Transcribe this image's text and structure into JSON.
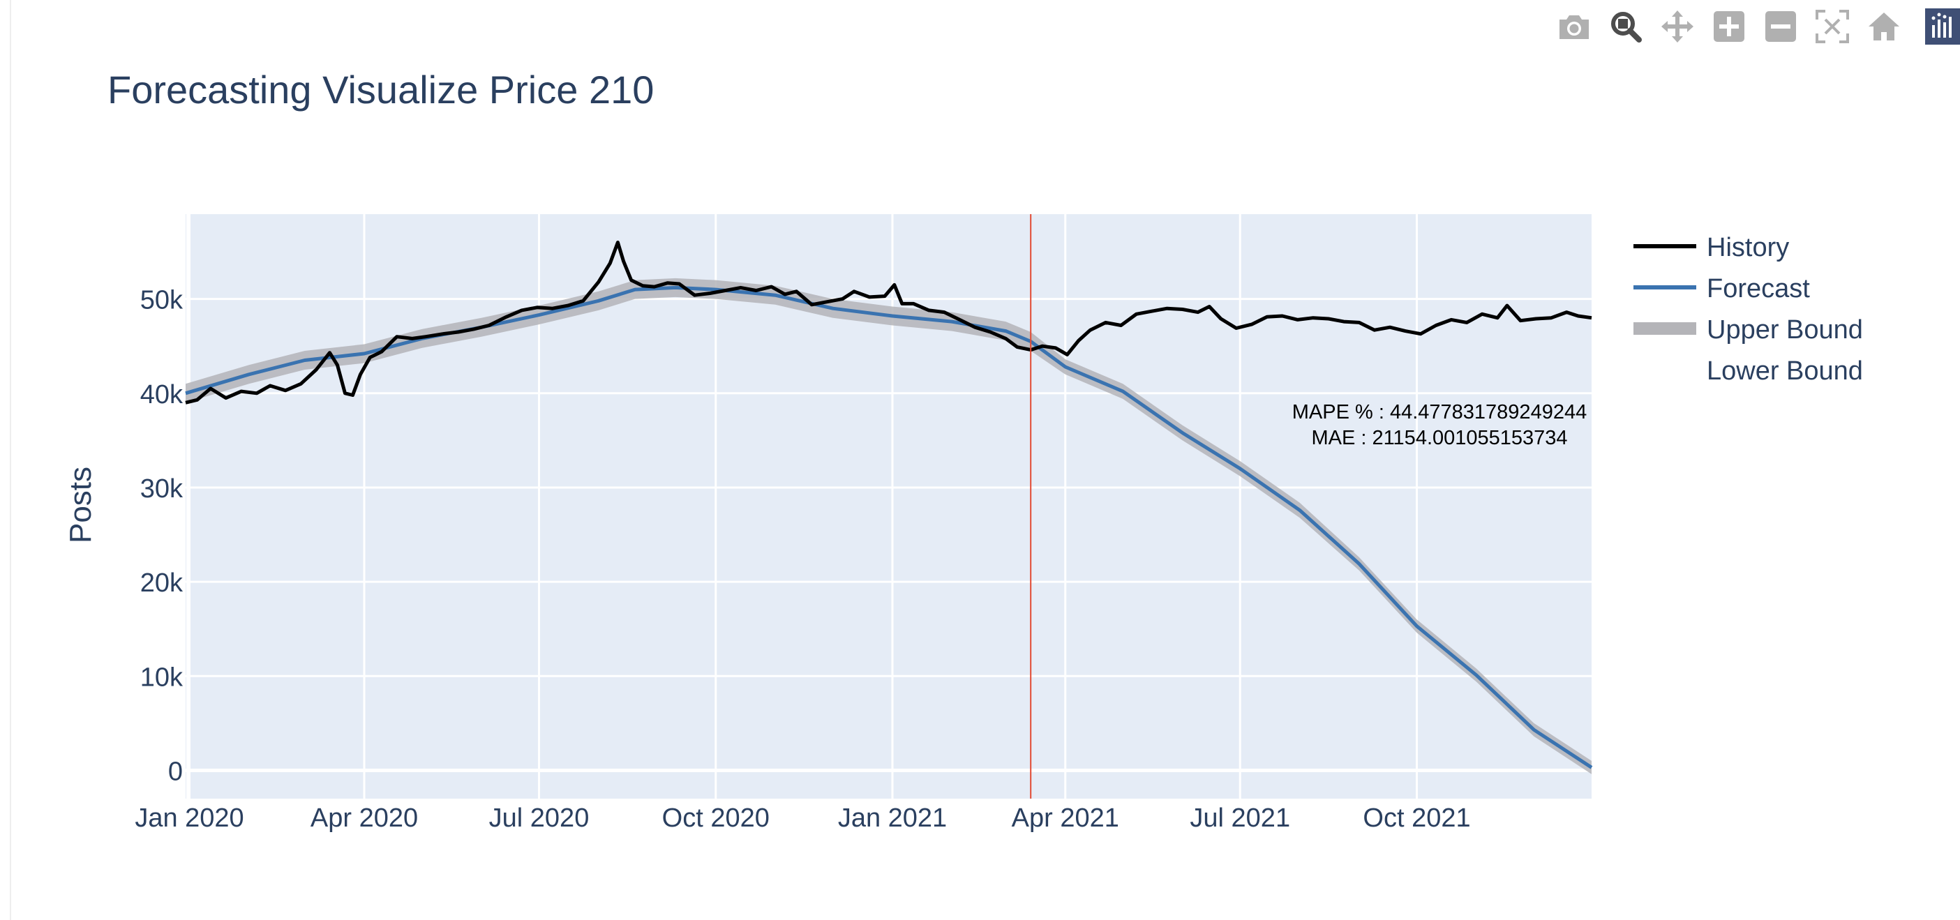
{
  "modebar": {
    "buttons": [
      {
        "name": "camera-icon",
        "active": false
      },
      {
        "name": "zoom-icon",
        "active": true
      },
      {
        "name": "pan-icon",
        "active": false
      },
      {
        "name": "zoom-in-icon",
        "active": false
      },
      {
        "name": "zoom-out-icon",
        "active": false
      },
      {
        "name": "autoscale-icon",
        "active": false
      },
      {
        "name": "home-icon",
        "active": false
      }
    ],
    "logo": "plotly-logo-icon"
  },
  "colors": {
    "plot_bg": "#e5ecf6",
    "grid": "#ffffff",
    "text": "#2a3f5f",
    "history": "#000000",
    "forecast": "#3a73b0",
    "band": "#b4b4b8",
    "divider": "#e24a33"
  },
  "chart_data": {
    "type": "line",
    "title": "Forecasting Visualize Price 210",
    "xlabel": "",
    "ylabel": "Posts",
    "x_range": [
      "2019-12-30",
      "2021-12-31"
    ],
    "ylim": [
      -3000,
      59000
    ],
    "x_tick_labels": [
      "Jan 2020",
      "Apr 2020",
      "Jul 2020",
      "Oct 2020",
      "Jan 2021",
      "Apr 2021",
      "Jul 2021",
      "Oct 2021"
    ],
    "x_tick_dates": [
      "2020-01-01",
      "2020-04-01",
      "2020-07-01",
      "2020-10-01",
      "2021-01-01",
      "2021-04-01",
      "2021-07-01",
      "2021-10-01"
    ],
    "y_tick_labels": [
      "0",
      "10k",
      "20k",
      "30k",
      "40k",
      "50k"
    ],
    "y_tick_values": [
      0,
      10000,
      20000,
      30000,
      40000,
      50000
    ],
    "grid": true,
    "legend_position": "right",
    "legend": [
      "History",
      "Forecast",
      "Upper Bound",
      "Lower Bound"
    ],
    "split_date": "2021-03-14",
    "annotation": {
      "mape_label": "MAPE % :  44.477831789249244",
      "mae_label": "MAE :  21154.001055153734"
    },
    "series": [
      {
        "name": "History",
        "x": [
          "2019-12-30",
          "2020-01-05",
          "2020-01-12",
          "2020-01-20",
          "2020-01-28",
          "2020-02-05",
          "2020-02-12",
          "2020-02-20",
          "2020-02-28",
          "2020-03-07",
          "2020-03-14",
          "2020-03-18",
          "2020-03-22",
          "2020-03-26",
          "2020-03-30",
          "2020-04-04",
          "2020-04-10",
          "2020-04-18",
          "2020-04-26",
          "2020-05-03",
          "2020-05-12",
          "2020-05-20",
          "2020-05-28",
          "2020-06-05",
          "2020-06-14",
          "2020-06-22",
          "2020-06-30",
          "2020-07-08",
          "2020-07-16",
          "2020-07-24",
          "2020-08-01",
          "2020-08-07",
          "2020-08-11",
          "2020-08-14",
          "2020-08-18",
          "2020-08-24",
          "2020-08-30",
          "2020-09-06",
          "2020-09-12",
          "2020-09-20",
          "2020-09-28",
          "2020-10-06",
          "2020-10-14",
          "2020-10-22",
          "2020-10-30",
          "2020-11-06",
          "2020-11-12",
          "2020-11-20",
          "2020-11-28",
          "2020-12-06",
          "2020-12-12",
          "2020-12-20",
          "2020-12-28",
          "2021-01-02",
          "2021-01-06",
          "2021-01-12",
          "2021-01-20",
          "2021-01-28",
          "2021-02-05",
          "2021-02-13",
          "2021-02-21",
          "2021-03-01",
          "2021-03-07",
          "2021-03-14",
          "2021-03-20",
          "2021-03-27",
          "2021-04-02",
          "2021-04-08",
          "2021-04-14",
          "2021-04-22",
          "2021-04-30",
          "2021-05-08",
          "2021-05-16",
          "2021-05-24",
          "2021-06-01",
          "2021-06-09",
          "2021-06-15",
          "2021-06-21",
          "2021-06-29",
          "2021-07-07",
          "2021-07-15",
          "2021-07-23",
          "2021-07-31",
          "2021-08-08",
          "2021-08-16",
          "2021-08-24",
          "2021-09-01",
          "2021-09-09",
          "2021-09-17",
          "2021-09-25",
          "2021-10-03",
          "2021-10-11",
          "2021-10-19",
          "2021-10-27",
          "2021-11-04",
          "2021-11-12",
          "2021-11-17",
          "2021-11-24",
          "2021-12-02",
          "2021-12-10",
          "2021-12-18",
          "2021-12-24",
          "2021-12-31"
        ],
        "y": [
          39000,
          39300,
          40500,
          39500,
          40200,
          40000,
          40800,
          40300,
          41000,
          42500,
          44300,
          43000,
          40000,
          39800,
          42000,
          43800,
          44400,
          46000,
          45800,
          46000,
          46300,
          46500,
          46800,
          47200,
          48100,
          48800,
          49100,
          49000,
          49300,
          49800,
          51800,
          53800,
          56000,
          54000,
          52000,
          51400,
          51300,
          51700,
          51600,
          50400,
          50600,
          50900,
          51200,
          50900,
          51300,
          50500,
          50800,
          49400,
          49700,
          50000,
          50800,
          50200,
          50300,
          51500,
          49500,
          49500,
          48800,
          48600,
          47800,
          47000,
          46500,
          45800,
          44900,
          44600,
          45000,
          44800,
          44100,
          45600,
          46700,
          47500,
          47200,
          48400,
          48700,
          49000,
          48900,
          48600,
          49200,
          47900,
          46900,
          47300,
          48100,
          48200,
          47800,
          48000,
          47900,
          47600,
          47500,
          46700,
          47000,
          46600,
          46300,
          47200,
          47800,
          47500,
          48400,
          48000,
          49300,
          47700,
          47900,
          48000,
          48600,
          48200,
          48000
        ]
      },
      {
        "name": "Forecast",
        "x": [
          "2019-12-30",
          "2020-02-01",
          "2020-03-01",
          "2020-04-01",
          "2020-05-01",
          "2020-06-01",
          "2020-07-01",
          "2020-08-01",
          "2020-08-20",
          "2020-09-10",
          "2020-10-01",
          "2020-11-01",
          "2020-12-01",
          "2021-01-01",
          "2021-02-01",
          "2021-03-01",
          "2021-03-14",
          "2021-04-01",
          "2021-05-01",
          "2021-06-01",
          "2021-07-01",
          "2021-08-01",
          "2021-09-01",
          "2021-10-01",
          "2021-11-01",
          "2021-12-01",
          "2021-12-31"
        ],
        "y": [
          40000,
          42000,
          43500,
          44200,
          45800,
          47000,
          48300,
          49800,
          51000,
          51200,
          51000,
          50400,
          49000,
          48200,
          47600,
          46600,
          45500,
          42800,
          40200,
          35800,
          32000,
          27600,
          21900,
          15300,
          10100,
          4300,
          300
        ]
      },
      {
        "name": "Upper Bound",
        "x": [
          "2019-12-30",
          "2020-02-01",
          "2020-03-01",
          "2020-04-01",
          "2020-05-01",
          "2020-06-01",
          "2020-07-01",
          "2020-08-01",
          "2020-08-20",
          "2020-09-10",
          "2020-10-01",
          "2020-11-01",
          "2020-12-01",
          "2021-01-01",
          "2021-02-01",
          "2021-03-01",
          "2021-03-14",
          "2021-04-01",
          "2021-05-01",
          "2021-06-01",
          "2021-07-01",
          "2021-08-01",
          "2021-09-01",
          "2021-10-01",
          "2021-11-01",
          "2021-12-01",
          "2021-12-31"
        ],
        "y": [
          41000,
          43000,
          44500,
          45200,
          46800,
          48000,
          49300,
          50800,
          52000,
          52200,
          52000,
          51400,
          50000,
          49200,
          48600,
          47600,
          46500,
          43600,
          41000,
          36600,
          32800,
          28400,
          22600,
          16000,
          10800,
          5000,
          1000
        ]
      },
      {
        "name": "Lower Bound",
        "x": [
          "2019-12-30",
          "2020-02-01",
          "2020-03-01",
          "2020-04-01",
          "2020-05-01",
          "2020-06-01",
          "2020-07-01",
          "2020-08-01",
          "2020-08-20",
          "2020-09-10",
          "2020-10-01",
          "2020-11-01",
          "2020-12-01",
          "2021-01-01",
          "2021-02-01",
          "2021-03-01",
          "2021-03-14",
          "2021-04-01",
          "2021-05-01",
          "2021-06-01",
          "2021-07-01",
          "2021-08-01",
          "2021-09-01",
          "2021-10-01",
          "2021-11-01",
          "2021-12-01",
          "2021-12-31"
        ],
        "y": [
          39000,
          41000,
          42500,
          43200,
          44800,
          46000,
          47300,
          48800,
          50000,
          50200,
          50000,
          49400,
          48000,
          47200,
          46600,
          45600,
          44500,
          42000,
          39400,
          35000,
          31200,
          26800,
          21200,
          14600,
          9400,
          3600,
          -400
        ]
      }
    ]
  }
}
